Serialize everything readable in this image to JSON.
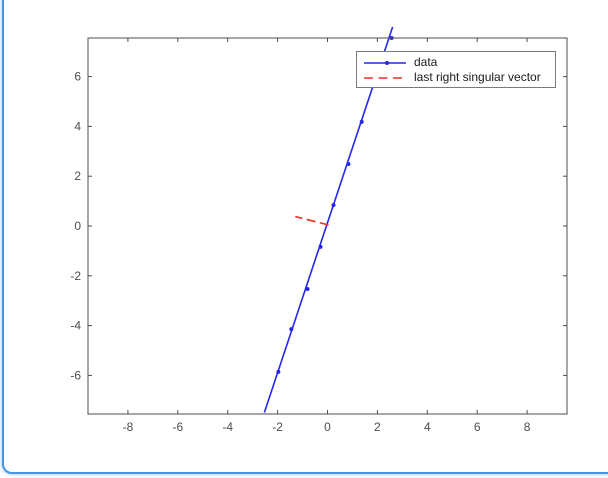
{
  "chart_data": {
    "type": "line",
    "title": "",
    "xlabel": "",
    "ylabel": "",
    "xlim": [
      -9.6,
      9.6
    ],
    "ylim": [
      -7.55,
      7.55
    ],
    "x_ticks": [
      -8,
      -6,
      -4,
      -2,
      0,
      2,
      4,
      6,
      8
    ],
    "y_ticks": [
      -6,
      -4,
      -2,
      0,
      2,
      4,
      6
    ],
    "grid": false,
    "box": true,
    "axis_color": "#4d4d4d",
    "legend": {
      "position": "northeast",
      "entries": [
        {
          "label": "data",
          "style": "solid-line-dot-marker",
          "color": "#2626e8"
        },
        {
          "label": "last right singular vector",
          "style": "dashed-line",
          "color": "#ee3124"
        }
      ]
    },
    "series": [
      {
        "name": "data",
        "style": "solid line with point markers",
        "color": "#2626e8",
        "x": [
          -1.97,
          -1.45,
          -0.8,
          -0.28,
          0.24,
          0.84,
          1.37,
          1.95,
          2.57
        ],
        "y": [
          -5.86,
          -4.14,
          -2.53,
          -0.84,
          0.84,
          2.49,
          4.18,
          5.9,
          7.55
        ],
        "line_extent_x": [
          -2.53,
          2.61
        ],
        "line_extent_y": [
          -7.49,
          7.99
        ]
      },
      {
        "name": "last right singular vector",
        "style": "dashed line segment",
        "color": "#ee3124",
        "x": [
          0.04,
          -1.29
        ],
        "y": [
          0.04,
          0.38
        ]
      }
    ]
  }
}
